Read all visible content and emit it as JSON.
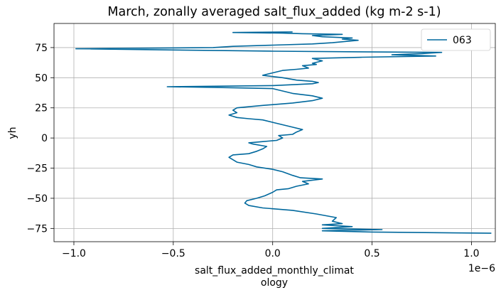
{
  "chart_data": {
    "type": "line",
    "title": "March, zonally averaged salt_flux_added (kg m-2 s-1)",
    "xlabel_line1": "salt_flux_added_monthly_climat",
    "xlabel_line2": "ology",
    "ylabel": "yh",
    "x_scale_label": "1e−6",
    "xlim": [
      -1.1,
      1.12
    ],
    "ylim": [
      -86,
      95
    ],
    "x_ticks": [
      -1.0,
      -0.5,
      0.0,
      0.5,
      1.0
    ],
    "x_tick_labels": [
      "−1.0",
      "−0.5",
      "0.0",
      "0.5",
      "1.0"
    ],
    "y_ticks": [
      -75,
      -50,
      -25,
      0,
      25,
      50,
      75
    ],
    "y_tick_labels": [
      "−75",
      "−50",
      "−25",
      "0",
      "25",
      "50",
      "75"
    ],
    "grid": true,
    "legend_position": "top-right",
    "series": [
      {
        "name": "063",
        "color": "#00689d",
        "points": [
          [
            1.1,
            -79
          ],
          [
            0.5,
            -78
          ],
          [
            0.25,
            -77
          ],
          [
            0.55,
            -76
          ],
          [
            0.25,
            -75
          ],
          [
            0.4,
            -73.5
          ],
          [
            0.25,
            -72
          ],
          [
            0.35,
            -71
          ],
          [
            0.3,
            -69
          ],
          [
            0.32,
            -66
          ],
          [
            0.22,
            -63
          ],
          [
            0.1,
            -60
          ],
          [
            -0.05,
            -58
          ],
          [
            -0.12,
            -56
          ],
          [
            -0.14,
            -54
          ],
          [
            -0.13,
            -52
          ],
          [
            -0.08,
            -50
          ],
          [
            -0.04,
            -48
          ],
          [
            0.0,
            -45
          ],
          [
            0.02,
            -43
          ],
          [
            0.08,
            -42
          ],
          [
            0.12,
            -40
          ],
          [
            0.18,
            -38
          ],
          [
            0.15,
            -36
          ],
          [
            0.25,
            -34
          ],
          [
            0.14,
            -33
          ],
          [
            0.1,
            -31
          ],
          [
            0.05,
            -28
          ],
          [
            0.0,
            -26
          ],
          [
            -0.08,
            -24
          ],
          [
            -0.12,
            -22
          ],
          [
            -0.18,
            -20
          ],
          [
            -0.2,
            -18
          ],
          [
            -0.22,
            -16
          ],
          [
            -0.2,
            -14
          ],
          [
            -0.12,
            -13
          ],
          [
            -0.08,
            -11
          ],
          [
            -0.05,
            -9
          ],
          [
            -0.03,
            -7
          ],
          [
            -0.1,
            -5
          ],
          [
            -0.12,
            -4
          ],
          [
            -0.05,
            -3
          ],
          [
            0.02,
            -2
          ],
          [
            0.05,
            0
          ],
          [
            0.03,
            2
          ],
          [
            0.1,
            3
          ],
          [
            0.12,
            5
          ],
          [
            0.15,
            7
          ],
          [
            0.1,
            9
          ],
          [
            0.05,
            11
          ],
          [
            0.0,
            13
          ],
          [
            -0.05,
            15
          ],
          [
            -0.12,
            16
          ],
          [
            -0.18,
            17
          ],
          [
            -0.2,
            18
          ],
          [
            -0.22,
            19
          ],
          [
            -0.18,
            21
          ],
          [
            -0.2,
            23
          ],
          [
            -0.18,
            25
          ],
          [
            -0.05,
            27
          ],
          [
            0.1,
            29
          ],
          [
            0.2,
            31
          ],
          [
            0.25,
            33
          ],
          [
            0.2,
            35
          ],
          [
            0.1,
            37
          ],
          [
            0.05,
            39
          ],
          [
            0.0,
            41
          ],
          [
            -0.3,
            42
          ],
          [
            -0.53,
            42.5
          ],
          [
            0.0,
            43.5
          ],
          [
            0.2,
            45
          ],
          [
            0.23,
            46
          ],
          [
            0.2,
            47
          ],
          [
            0.12,
            48
          ],
          [
            0.05,
            50
          ],
          [
            -0.05,
            52
          ],
          [
            0.0,
            54
          ],
          [
            0.05,
            56
          ],
          [
            0.12,
            57
          ],
          [
            0.18,
            58
          ],
          [
            0.15,
            60
          ],
          [
            0.22,
            61
          ],
          [
            0.2,
            62
          ],
          [
            0.25,
            64
          ],
          [
            0.2,
            66
          ],
          [
            0.45,
            67
          ],
          [
            0.82,
            68
          ],
          [
            0.6,
            69
          ],
          [
            0.75,
            70
          ],
          [
            0.85,
            71
          ],
          [
            0.0,
            72
          ],
          [
            -0.5,
            73
          ],
          [
            -0.99,
            74
          ],
          [
            -0.3,
            75
          ],
          [
            -0.2,
            76
          ],
          [
            0.0,
            77
          ],
          [
            0.2,
            78
          ],
          [
            0.3,
            79
          ],
          [
            0.43,
            81
          ],
          [
            0.35,
            82
          ],
          [
            0.4,
            83
          ],
          [
            0.25,
            84
          ],
          [
            0.2,
            85
          ],
          [
            0.35,
            86
          ],
          [
            0.15,
            86.5
          ],
          [
            0.05,
            87
          ],
          [
            -0.2,
            87.5
          ],
          [
            0.1,
            88
          ]
        ]
      }
    ]
  }
}
